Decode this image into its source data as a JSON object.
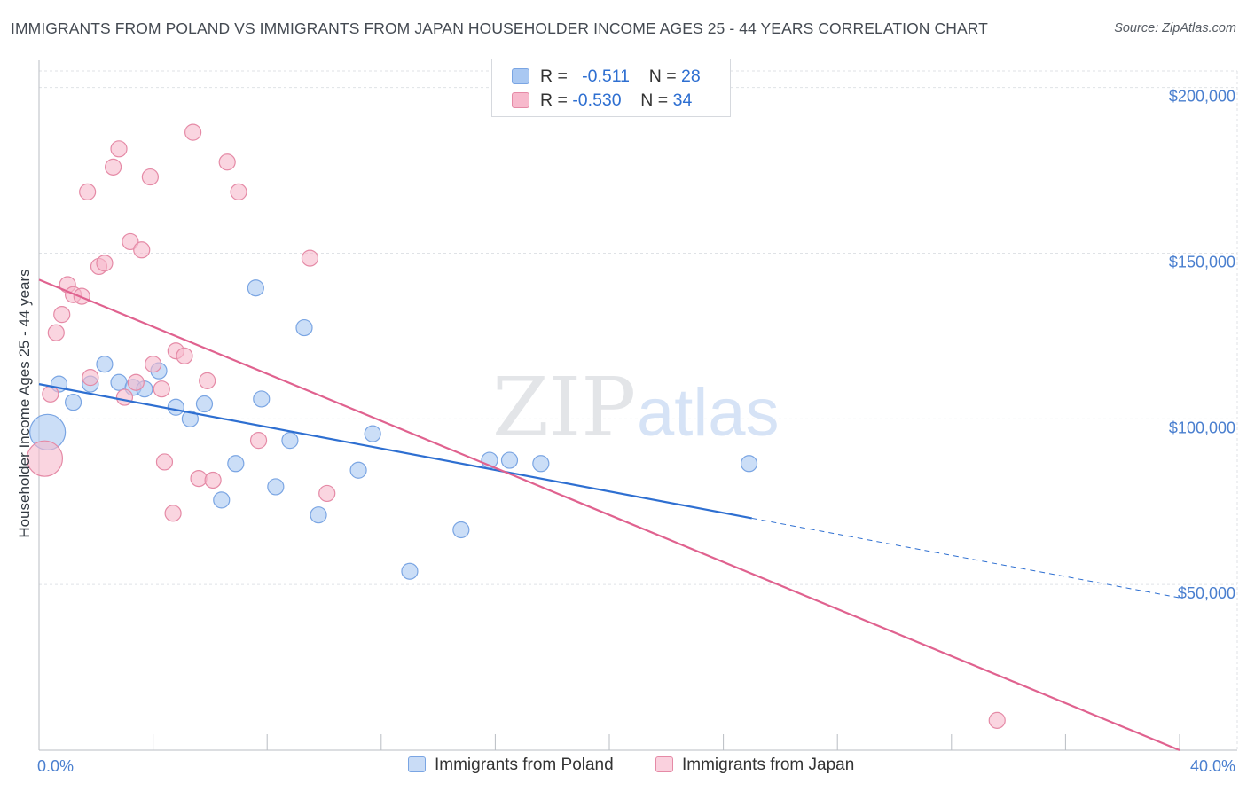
{
  "title": "IMMIGRANTS FROM POLAND VS IMMIGRANTS FROM JAPAN HOUSEHOLDER INCOME AGES 25 - 44 YEARS CORRELATION CHART",
  "source": "Source: ZipAtlas.com",
  "watermark": {
    "zip": "ZIP",
    "atlas": "atlas"
  },
  "legend": {
    "rows": [
      {
        "r_label": "R =",
        "r_value": "-0.511",
        "n_label": "N =",
        "n_value": "28",
        "color": "#a9c8f2",
        "border": "#7aa5e3"
      },
      {
        "r_label": "R =",
        "r_value": "-0.530",
        "n_label": "N =",
        "n_value": "34",
        "color": "#f7b9cc",
        "border": "#e58aa6"
      }
    ]
  },
  "bottom_legend": [
    {
      "label": "Immigrants from Poland",
      "color": "#a9c8f2",
      "border": "#7aa5e3"
    },
    {
      "label": "Immigrants from Japan",
      "color": "#f7b9cc",
      "border": "#e58aa6"
    }
  ],
  "chart_data": {
    "type": "scatter",
    "title": "IMMIGRANTS FROM POLAND VS IMMIGRANTS FROM JAPAN HOUSEHOLDER INCOME AGES 25 - 44 YEARS CORRELATION CHART",
    "xlabel": "",
    "ylabel": "Householder Income Ages 25 - 44 years",
    "xlim": [
      0,
      40
    ],
    "ylim": [
      0,
      205000
    ],
    "x_tick_labels": [
      "0.0%",
      "40.0%"
    ],
    "y_ticks": [
      {
        "value": 50000,
        "label": "$50,000"
      },
      {
        "value": 100000,
        "label": "$100,000"
      },
      {
        "value": 150000,
        "label": "$150,000"
      },
      {
        "value": 200000,
        "label": "$200,000"
      }
    ],
    "grid": true,
    "legend_position": "top-center",
    "series": [
      {
        "name": "Immigrants from Poland",
        "color": "#a9c8f2",
        "stroke": "#7aa5e3",
        "line_color": "#2e6fd1",
        "trend": {
          "x0": 0,
          "y0": 110500,
          "x1": 25,
          "y1": 70000,
          "dash_to_x": 40,
          "dash_to_y": 46000
        },
        "points": [
          {
            "x": 0.3,
            "y": 96000,
            "big": true
          },
          {
            "x": 0.7,
            "y": 110500
          },
          {
            "x": 1.2,
            "y": 105000
          },
          {
            "x": 1.8,
            "y": 110500
          },
          {
            "x": 2.3,
            "y": 116500
          },
          {
            "x": 2.8,
            "y": 111000
          },
          {
            "x": 3.3,
            "y": 109500
          },
          {
            "x": 3.7,
            "y": 109000
          },
          {
            "x": 4.2,
            "y": 114500
          },
          {
            "x": 4.8,
            "y": 103500
          },
          {
            "x": 5.3,
            "y": 100000
          },
          {
            "x": 5.8,
            "y": 104500
          },
          {
            "x": 6.4,
            "y": 75500
          },
          {
            "x": 6.9,
            "y": 86500
          },
          {
            "x": 7.6,
            "y": 139500
          },
          {
            "x": 7.8,
            "y": 106000
          },
          {
            "x": 8.3,
            "y": 79500
          },
          {
            "x": 8.8,
            "y": 93500
          },
          {
            "x": 9.3,
            "y": 127500
          },
          {
            "x": 9.8,
            "y": 71000
          },
          {
            "x": 11.2,
            "y": 84500
          },
          {
            "x": 11.7,
            "y": 95500
          },
          {
            "x": 13.0,
            "y": 54000
          },
          {
            "x": 14.8,
            "y": 66500
          },
          {
            "x": 15.8,
            "y": 87500
          },
          {
            "x": 16.5,
            "y": 87500
          },
          {
            "x": 17.6,
            "y": 86500
          },
          {
            "x": 24.9,
            "y": 86500
          }
        ]
      },
      {
        "name": "Immigrants from Japan",
        "color": "#f7b9cc",
        "stroke": "#e58aa6",
        "line_color": "#e0628f",
        "trend": {
          "x0": 0,
          "y0": 142000,
          "x1": 40,
          "y1": 0
        },
        "points": [
          {
            "x": 0.2,
            "y": 88000,
            "big": true
          },
          {
            "x": 0.4,
            "y": 107500
          },
          {
            "x": 0.6,
            "y": 126000
          },
          {
            "x": 0.8,
            "y": 131500
          },
          {
            "x": 1.0,
            "y": 140500
          },
          {
            "x": 1.2,
            "y": 137500
          },
          {
            "x": 1.5,
            "y": 137000
          },
          {
            "x": 1.7,
            "y": 168500
          },
          {
            "x": 1.8,
            "y": 112500
          },
          {
            "x": 2.1,
            "y": 146000
          },
          {
            "x": 2.3,
            "y": 147000
          },
          {
            "x": 2.6,
            "y": 176000
          },
          {
            "x": 2.8,
            "y": 181500
          },
          {
            "x": 3.0,
            "y": 106500
          },
          {
            "x": 3.2,
            "y": 153500
          },
          {
            "x": 3.4,
            "y": 111000
          },
          {
            "x": 3.6,
            "y": 151000
          },
          {
            "x": 3.9,
            "y": 173000
          },
          {
            "x": 4.0,
            "y": 116500
          },
          {
            "x": 4.3,
            "y": 109000
          },
          {
            "x": 4.4,
            "y": 87000
          },
          {
            "x": 4.7,
            "y": 71500
          },
          {
            "x": 4.8,
            "y": 120500
          },
          {
            "x": 5.1,
            "y": 119000
          },
          {
            "x": 5.4,
            "y": 186500
          },
          {
            "x": 5.6,
            "y": 82000
          },
          {
            "x": 5.9,
            "y": 111500
          },
          {
            "x": 6.1,
            "y": 81500
          },
          {
            "x": 6.6,
            "y": 177500
          },
          {
            "x": 7.0,
            "y": 168500
          },
          {
            "x": 7.7,
            "y": 93500
          },
          {
            "x": 9.5,
            "y": 148500
          },
          {
            "x": 10.1,
            "y": 77500
          },
          {
            "x": 33.6,
            "y": 9000
          }
        ]
      }
    ]
  }
}
